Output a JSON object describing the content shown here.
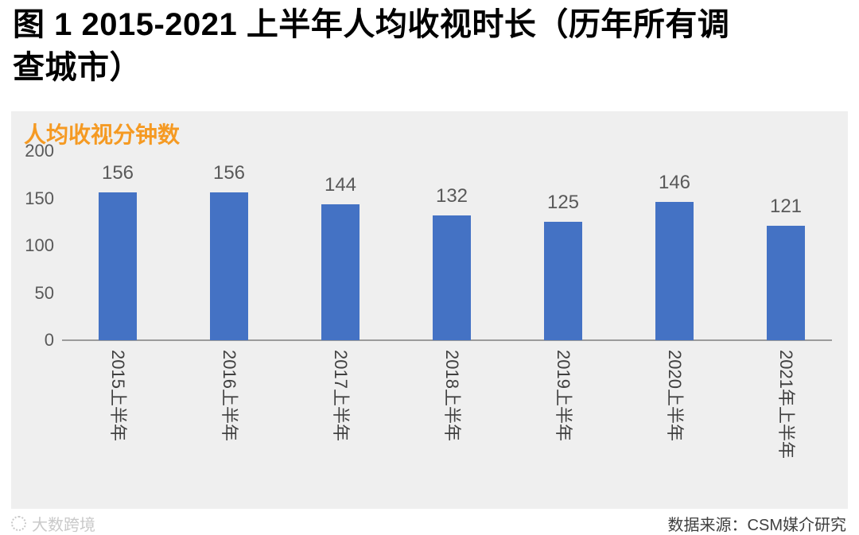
{
  "header": {
    "line1": "图 1  2015-2021 上半年人均收视时长（历年所有调",
    "line2": "查城市）"
  },
  "chart_data": {
    "type": "bar",
    "title": "图 1 2015-2021 上半年人均收视时长（历年所有调查城市）",
    "ylabel": "人均收视分钟数",
    "xlabel": "",
    "categories": [
      "2015上半年",
      "2016上半年",
      "2017上半年",
      "2018上半年",
      "2019上半年",
      "2020上半年",
      "2021年上半年"
    ],
    "values": [
      156,
      156,
      144,
      132,
      125,
      146,
      121
    ],
    "ylim": [
      0,
      200
    ],
    "yticks": [
      0,
      50,
      100,
      150,
      200
    ],
    "grid": false,
    "legend": false,
    "bar_color": "#4472C4"
  },
  "footer": {
    "watermark": "大数跨境",
    "source": "数据来源：CSM媒介研究"
  },
  "colors": {
    "bar": "#4472C4",
    "panel-bg": "#EFEFEF",
    "axis-title": "#F59A23",
    "tick-text": "#595959",
    "value-text": "#595959",
    "category-text": "#404040",
    "axis-line": "#9B9B9B",
    "source-text": "#3F3F3F",
    "watermark-text": "#C9C9C9",
    "title-text": "#000000"
  }
}
